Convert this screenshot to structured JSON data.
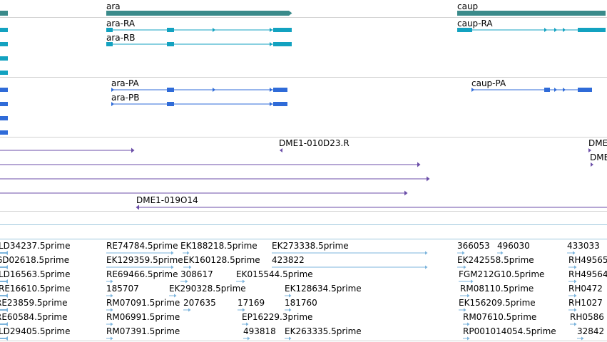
{
  "colors": {
    "gene": "#3a8a8a",
    "transcript_ra": "#13a2c0",
    "transcript_pa": "#2f6bd8",
    "clone": "#6b4ea8",
    "est": "#7cb4dc",
    "divider": "#d2d2d2",
    "divider_blue": "#9ec7dd"
  },
  "genes": [
    {
      "name": "ara"
    },
    {
      "name": "caup"
    }
  ],
  "transcripts": [
    {
      "name": "ara-RA"
    },
    {
      "name": "ara-RB"
    },
    {
      "name": "caup-RA"
    }
  ],
  "proteins": [
    {
      "name": "ara-PA"
    },
    {
      "name": "ara-PB"
    },
    {
      "name": "caup-PA"
    }
  ],
  "clones": [
    {
      "name": "DME1-010D23.R"
    },
    {
      "name": "DME"
    },
    {
      "name": "DME"
    },
    {
      "name": "DME1-019O14"
    }
  ],
  "ests": [
    "LD34237.5prime",
    "RE74784.5prime",
    "EK188218.5prime",
    "EK273338.5prime",
    "366053",
    "496030",
    "433033",
    "GD02618.5prime",
    "EK129359.5prime",
    "EK160128.5prime",
    "EK242558.5prime",
    "RH49565",
    "LD16563.5prime",
    "RE69466.5prime",
    "308617",
    "EK015544.5prime",
    "FGM212G10.5prime",
    "RH49564",
    "RE16610.5prime",
    "185707",
    "EK290328.5prime",
    "EK128634.5prime",
    "RM08110.5prime",
    "RH0472",
    "RE23859.5prime",
    "RM07091.5prime",
    "207635",
    "17169",
    "181760",
    "EK156209.5prime",
    "RH1027",
    "RE60584.5prime",
    "RM06991.5prime",
    "EP16229.3prime",
    "RM07610.5prime",
    "RH0586",
    "LD29405.5prime",
    "RM07391.5prime",
    "493818",
    "EK263335.5prime",
    "RP001014054.5prime",
    "32842",
    "423822"
  ]
}
